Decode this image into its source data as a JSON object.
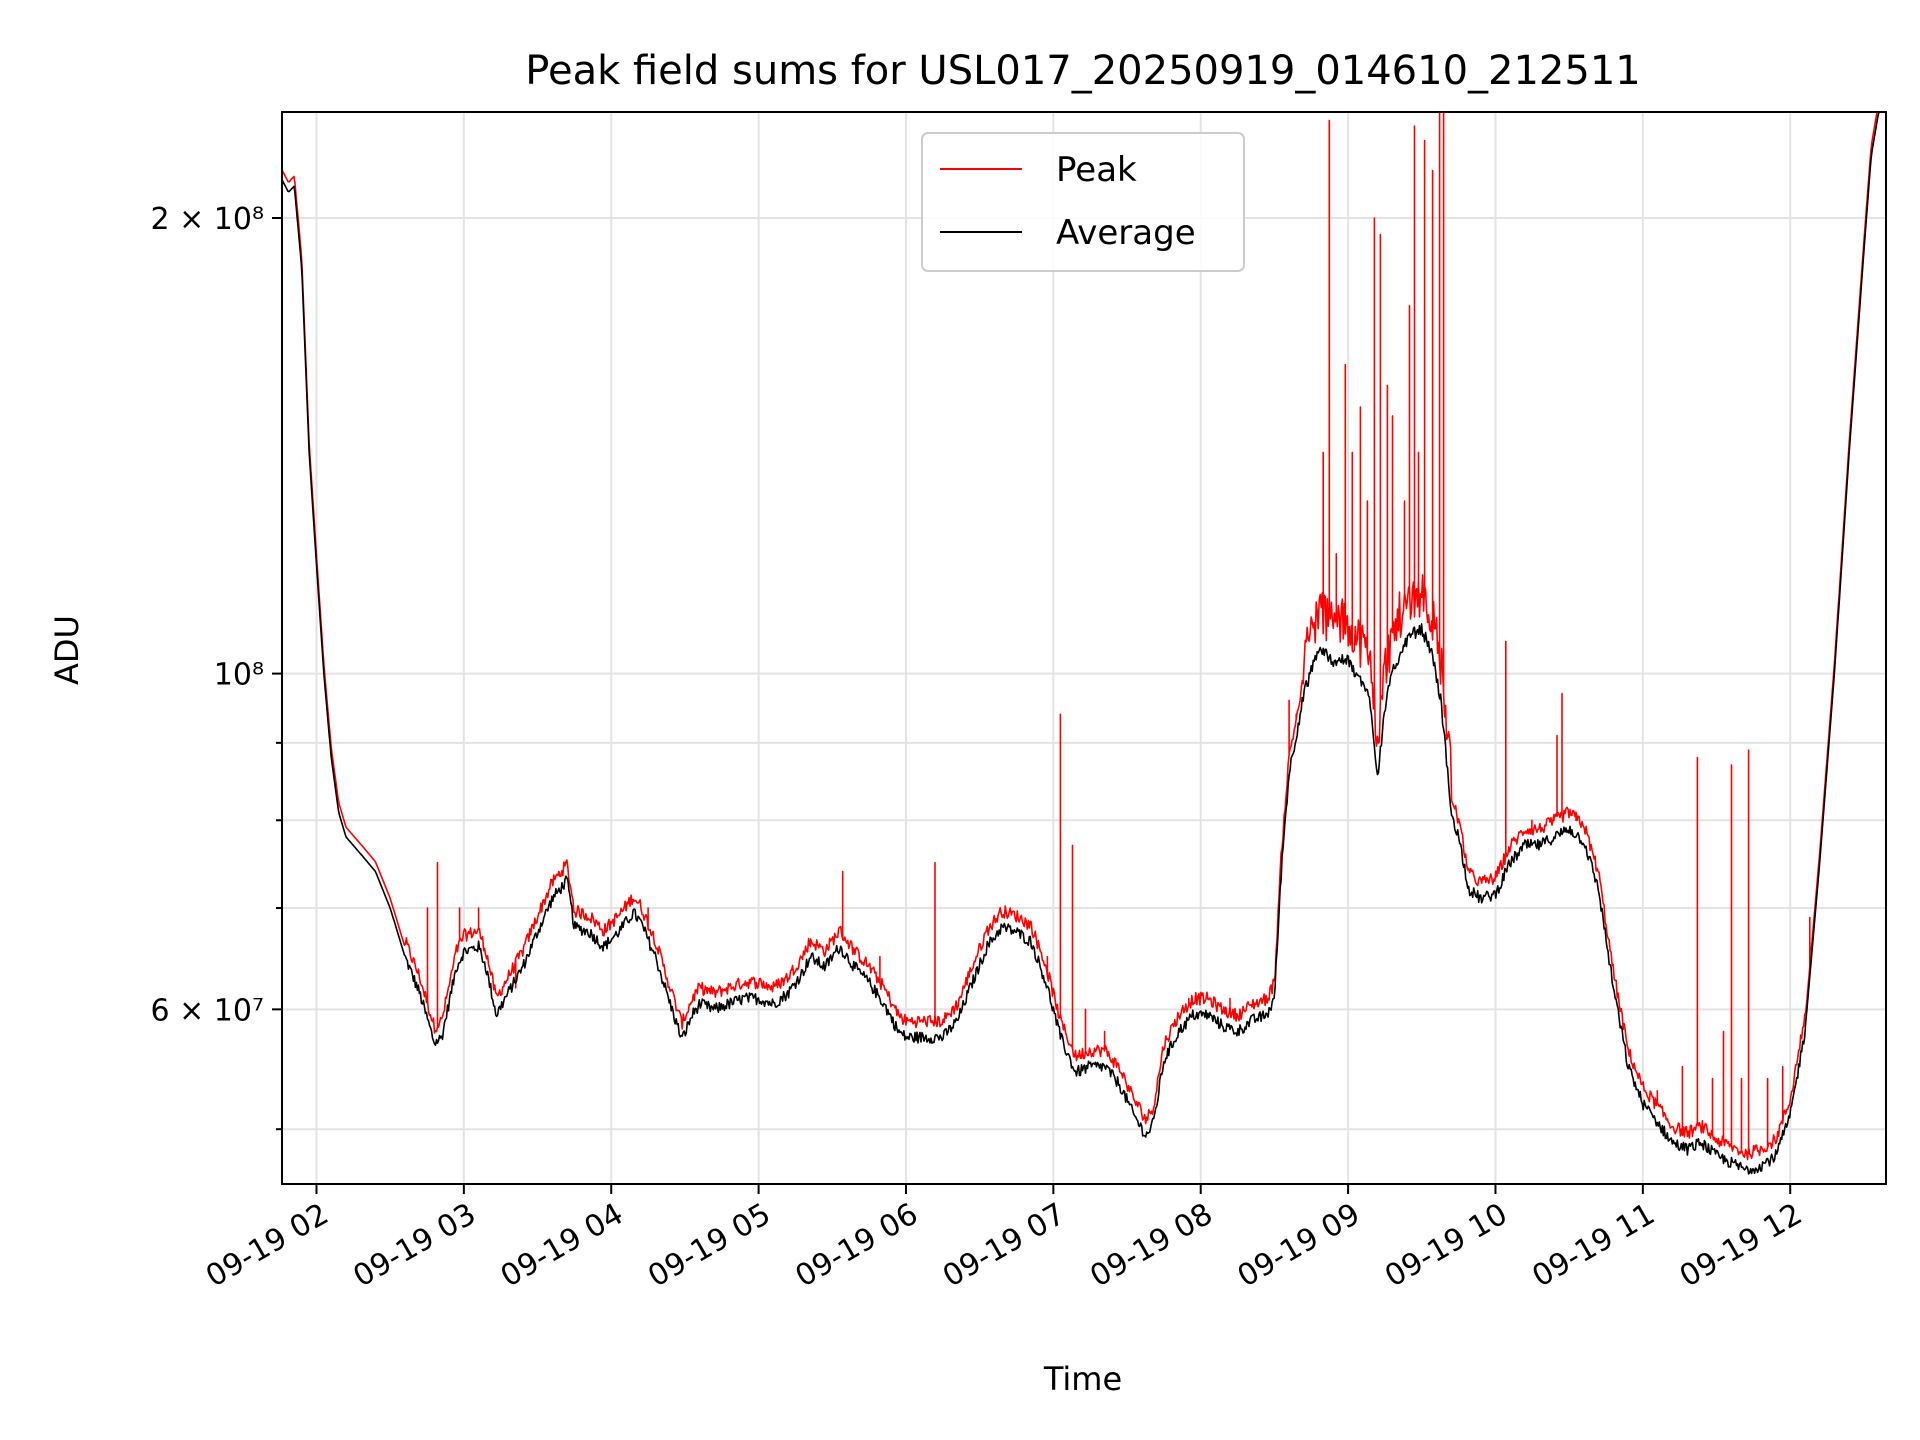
{
  "chart_data": {
    "type": "line",
    "title": "Peak field sums for USL017_20250919_014610_212511",
    "xlabel": "Time",
    "ylabel": "ADU",
    "x_unit": "hours (2025-09-19)",
    "xlim": [
      1.766,
      12.65
    ],
    "ylim": [
      46000000,
      235000000
    ],
    "yscale": "log",
    "grid": true,
    "legend_position": "upper-center",
    "x_ticks": [
      {
        "value": 2,
        "label": "09-19 02"
      },
      {
        "value": 3,
        "label": "09-19 03"
      },
      {
        "value": 4,
        "label": "09-19 04"
      },
      {
        "value": 5,
        "label": "09-19 05"
      },
      {
        "value": 6,
        "label": "09-19 06"
      },
      {
        "value": 7,
        "label": "09-19 07"
      },
      {
        "value": 8,
        "label": "09-19 08"
      },
      {
        "value": 9,
        "label": "09-19 09"
      },
      {
        "value": 10,
        "label": "09-19 10"
      },
      {
        "value": 11,
        "label": "09-19 11"
      },
      {
        "value": 12,
        "label": "09-19 12"
      }
    ],
    "y_major_ticks": [
      {
        "value": 60000000,
        "label": "6 × 10⁷"
      },
      {
        "value": 100000000,
        "label": "10⁸"
      },
      {
        "value": 200000000,
        "label": "2 × 10⁸"
      }
    ],
    "y_minor_ticks": [
      50000000,
      70000000,
      80000000,
      90000000
    ],
    "series": [
      {
        "name": "Peak",
        "color": "#ff0000",
        "base_offset": 1.015,
        "spikes": [
          [
            2.75,
            70000000
          ],
          [
            2.82,
            75000000
          ],
          [
            2.97,
            70000000
          ],
          [
            3.1,
            70000000
          ],
          [
            3.35,
            62000000
          ],
          [
            4.25,
            70000000
          ],
          [
            4.65,
            62000000
          ],
          [
            4.78,
            62000000
          ],
          [
            5.35,
            66000000
          ],
          [
            5.57,
            74000000
          ],
          [
            5.82,
            65000000
          ],
          [
            6.2,
            75000000
          ],
          [
            6.96,
            65000000
          ],
          [
            7.05,
            94000000
          ],
          [
            7.13,
            77000000
          ],
          [
            7.22,
            60000000
          ],
          [
            7.35,
            58000000
          ],
          [
            7.92,
            61000000
          ],
          [
            8.2,
            61000000
          ],
          [
            8.6,
            96000000
          ],
          [
            8.65,
            94000000
          ],
          [
            8.75,
            108000000
          ],
          [
            8.83,
            140000000
          ],
          [
            8.87,
            232000000
          ],
          [
            8.92,
            120000000
          ],
          [
            8.98,
            160000000
          ],
          [
            9.03,
            140000000
          ],
          [
            9.08,
            150000000
          ],
          [
            9.13,
            130000000
          ],
          [
            9.18,
            200000000
          ],
          [
            9.22,
            195000000
          ],
          [
            9.27,
            155000000
          ],
          [
            9.3,
            148000000
          ],
          [
            9.38,
            130000000
          ],
          [
            9.42,
            175000000
          ],
          [
            9.45,
            230000000
          ],
          [
            9.48,
            140000000
          ],
          [
            9.52,
            225000000
          ],
          [
            9.57,
            215000000
          ],
          [
            9.62,
            235000000
          ],
          [
            9.65,
            235000000
          ],
          [
            10.07,
            105000000
          ],
          [
            10.25,
            80000000
          ],
          [
            10.4,
            80000000
          ],
          [
            10.42,
            91000000
          ],
          [
            10.45,
            97000000
          ],
          [
            10.55,
            80000000
          ],
          [
            11.1,
            53000000
          ],
          [
            11.27,
            55000000
          ],
          [
            11.37,
            88000000
          ],
          [
            11.47,
            54000000
          ],
          [
            11.55,
            58000000
          ],
          [
            11.6,
            87000000
          ],
          [
            11.67,
            54000000
          ],
          [
            11.72,
            89000000
          ],
          [
            11.85,
            54000000
          ],
          [
            11.95,
            55000000
          ],
          [
            12.13,
            69000000
          ]
        ]
      },
      {
        "name": "Average",
        "color": "#000000",
        "points": [
          [
            1.766,
            212000000
          ],
          [
            1.81,
            208000000
          ],
          [
            1.85,
            210000000
          ],
          [
            1.9,
            185000000
          ],
          [
            1.95,
            140000000
          ],
          [
            2.0,
            118000000
          ],
          [
            2.05,
            100000000
          ],
          [
            2.1,
            88000000
          ],
          [
            2.15,
            81000000
          ],
          [
            2.2,
            78000000
          ],
          [
            2.3,
            76000000
          ],
          [
            2.4,
            74000000
          ],
          [
            2.5,
            70000000
          ],
          [
            2.6,
            65000000
          ],
          [
            2.7,
            61500000
          ],
          [
            2.8,
            57000000
          ],
          [
            2.85,
            57500000
          ],
          [
            2.95,
            64000000
          ],
          [
            3.0,
            65500000
          ],
          [
            3.1,
            66000000
          ],
          [
            3.15,
            64000000
          ],
          [
            3.22,
            59500000
          ],
          [
            3.3,
            61500000
          ],
          [
            3.4,
            64000000
          ],
          [
            3.5,
            67500000
          ],
          [
            3.6,
            71000000
          ],
          [
            3.7,
            73000000
          ],
          [
            3.75,
            68000000
          ],
          [
            3.85,
            67500000
          ],
          [
            3.95,
            66000000
          ],
          [
            4.05,
            67500000
          ],
          [
            4.15,
            69500000
          ],
          [
            4.2,
            68500000
          ],
          [
            4.3,
            65000000
          ],
          [
            4.4,
            60500000
          ],
          [
            4.48,
            57300000
          ],
          [
            4.55,
            59500000
          ],
          [
            4.6,
            60500000
          ],
          [
            4.7,
            60000000
          ],
          [
            4.8,
            60500000
          ],
          [
            4.9,
            61000000
          ],
          [
            5.0,
            61000000
          ],
          [
            5.1,
            60500000
          ],
          [
            5.2,
            61500000
          ],
          [
            5.3,
            63500000
          ],
          [
            5.35,
            65000000
          ],
          [
            5.45,
            64000000
          ],
          [
            5.55,
            66000000
          ],
          [
            5.65,
            64000000
          ],
          [
            5.75,
            62500000
          ],
          [
            5.85,
            60500000
          ],
          [
            5.95,
            58000000
          ],
          [
            6.0,
            57500000
          ],
          [
            6.1,
            57500000
          ],
          [
            6.25,
            57500000
          ],
          [
            6.35,
            59000000
          ],
          [
            6.45,
            62500000
          ],
          [
            6.55,
            66000000
          ],
          [
            6.65,
            68000000
          ],
          [
            6.75,
            67500000
          ],
          [
            6.85,
            66500000
          ],
          [
            6.95,
            62500000
          ],
          [
            7.05,
            57500000
          ],
          [
            7.15,
            54500000
          ],
          [
            7.25,
            55000000
          ],
          [
            7.35,
            55000000
          ],
          [
            7.45,
            53500000
          ],
          [
            7.55,
            51000000
          ],
          [
            7.63,
            49500000
          ],
          [
            7.68,
            50500000
          ],
          [
            7.75,
            55500000
          ],
          [
            7.85,
            58000000
          ],
          [
            7.95,
            59500000
          ],
          [
            8.05,
            59500000
          ],
          [
            8.15,
            58500000
          ],
          [
            8.25,
            58000000
          ],
          [
            8.35,
            59000000
          ],
          [
            8.45,
            59500000
          ],
          [
            8.5,
            61000000
          ],
          [
            8.55,
            75000000
          ],
          [
            8.6,
            86000000
          ],
          [
            8.7,
            97000000
          ],
          [
            8.8,
            104000000
          ],
          [
            8.9,
            102000000
          ],
          [
            9.0,
            102000000
          ],
          [
            9.05,
            100000000
          ],
          [
            9.1,
            98500000
          ],
          [
            9.15,
            96000000
          ],
          [
            9.2,
            85500000
          ],
          [
            9.25,
            95000000
          ],
          [
            9.3,
            100000000
          ],
          [
            9.35,
            103000000
          ],
          [
            9.42,
            106000000
          ],
          [
            9.5,
            107000000
          ],
          [
            9.57,
            103000000
          ],
          [
            9.63,
            96000000
          ],
          [
            9.7,
            81000000
          ],
          [
            9.75,
            78000000
          ],
          [
            9.82,
            72000000
          ],
          [
            9.9,
            71000000
          ],
          [
            10.0,
            71500000
          ],
          [
            10.1,
            75000000
          ],
          [
            10.2,
            77000000
          ],
          [
            10.3,
            77000000
          ],
          [
            10.4,
            78000000
          ],
          [
            10.5,
            79000000
          ],
          [
            10.6,
            77500000
          ],
          [
            10.7,
            72000000
          ],
          [
            10.8,
            62000000
          ],
          [
            10.9,
            55000000
          ],
          [
            11.0,
            52000000
          ],
          [
            11.1,
            50500000
          ],
          [
            11.2,
            49000000
          ],
          [
            11.3,
            48500000
          ],
          [
            11.4,
            49000000
          ],
          [
            11.5,
            48000000
          ],
          [
            11.6,
            47500000
          ],
          [
            11.7,
            47000000
          ],
          [
            11.8,
            47300000
          ],
          [
            11.9,
            48000000
          ],
          [
            12.0,
            51000000
          ],
          [
            12.1,
            58000000
          ],
          [
            12.2,
            75000000
          ],
          [
            12.3,
            100000000
          ],
          [
            12.4,
            140000000
          ],
          [
            12.5,
            190000000
          ],
          [
            12.55,
            220000000
          ],
          [
            12.6,
            235000000
          ],
          [
            12.65,
            235000000
          ]
        ]
      }
    ]
  }
}
